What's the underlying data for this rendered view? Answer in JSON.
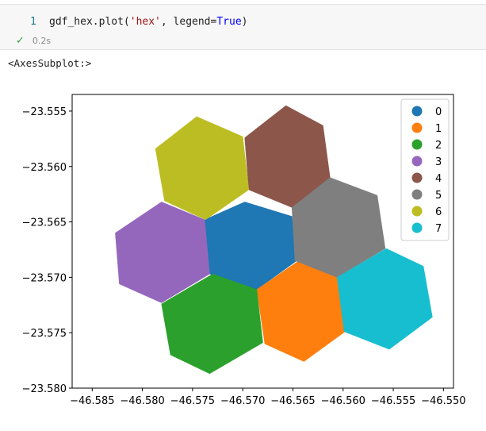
{
  "cell": {
    "line_number": "1",
    "code": {
      "prefix": "gdf_hex.plot(",
      "string_arg": "'hex'",
      "separator": ", legend=",
      "keyword_value": "True",
      "suffix": ")"
    },
    "exec_time": "0.2s"
  },
  "output_text": "<AxesSubplot:>",
  "chart_data": {
    "type": "map",
    "xlim": [
      -46.587,
      -46.549
    ],
    "ylim": [
      -23.58,
      -23.5535
    ],
    "x_ticks": [
      -46.585,
      -46.58,
      -46.575,
      -46.57,
      -46.565,
      -46.56,
      -46.555,
      -46.55
    ],
    "x_tick_labels": [
      "−46.585",
      "−46.580",
      "−46.575",
      "−46.570",
      "−46.565",
      "−46.560",
      "−46.555",
      "−46.550"
    ],
    "y_ticks": [
      -23.555,
      -23.56,
      -23.565,
      -23.57,
      -23.575,
      -23.58
    ],
    "y_tick_labels": [
      "−23.555",
      "−23.560",
      "−23.565",
      "−23.570",
      "−23.575",
      "−23.580"
    ],
    "legend_position": "top-right",
    "series": [
      {
        "name": "0",
        "color": "#1f77b4",
        "polygon": [
          [
            -46.5738,
            -23.5648
          ],
          [
            -46.5738,
            -23.5648
          ],
          [
            -46.5698,
            -23.5632
          ],
          [
            -46.5651,
            -23.5645
          ],
          [
            -46.5646,
            -23.5685
          ],
          [
            -46.5686,
            -23.5711
          ],
          [
            -46.5733,
            -23.5697
          ]
        ]
      },
      {
        "name": "1",
        "color": "#ff7f0e",
        "polygon": [
          [
            -46.5686,
            -23.5711
          ],
          [
            -46.5644,
            -23.5685
          ],
          [
            -46.5606,
            -23.57
          ],
          [
            -46.5598,
            -23.5749
          ],
          [
            -46.5639,
            -23.5776
          ],
          [
            -46.5678,
            -23.576
          ]
        ]
      },
      {
        "name": "2",
        "color": "#2ca02c",
        "polygon": [
          [
            -46.5781,
            -23.5724
          ],
          [
            -46.573,
            -23.5697
          ],
          [
            -46.5686,
            -23.5711
          ],
          [
            -46.568,
            -23.5759
          ],
          [
            -46.5733,
            -23.5787
          ],
          [
            -46.5772,
            -23.577
          ]
        ]
      },
      {
        "name": "3",
        "color": "#9467bd",
        "polygon": [
          [
            -46.5827,
            -23.566
          ],
          [
            -46.5781,
            -23.5632
          ],
          [
            -46.5738,
            -23.5648
          ],
          [
            -46.5733,
            -23.5697
          ],
          [
            -46.5781,
            -23.5723
          ],
          [
            -46.5823,
            -23.5706
          ]
        ]
      },
      {
        "name": "4",
        "color": "#8c564b",
        "polygon": [
          [
            -46.5698,
            -23.5574
          ],
          [
            -46.5657,
            -23.5545
          ],
          [
            -46.562,
            -23.5563
          ],
          [
            -46.5613,
            -23.561
          ],
          [
            -46.5651,
            -23.5637
          ],
          [
            -46.5694,
            -23.5621
          ]
        ]
      },
      {
        "name": "5",
        "color": "#7f7f7f",
        "polygon": [
          [
            -46.5651,
            -23.5637
          ],
          [
            -46.5613,
            -23.561
          ],
          [
            -46.5566,
            -23.5626
          ],
          [
            -46.5558,
            -23.5674
          ],
          [
            -46.5606,
            -23.57
          ],
          [
            -46.5648,
            -23.5685
          ]
        ]
      },
      {
        "name": "6",
        "color": "#bcbd22",
        "polygon": [
          [
            -46.5787,
            -23.5584
          ],
          [
            -46.5746,
            -23.5555
          ],
          [
            -46.57,
            -23.5573
          ],
          [
            -46.5694,
            -23.5621
          ],
          [
            -46.5737,
            -23.5648
          ],
          [
            -46.5778,
            -23.5631
          ]
        ]
      },
      {
        "name": "7",
        "color": "#17becf",
        "polygon": [
          [
            -46.5606,
            -23.57
          ],
          [
            -46.5557,
            -23.5674
          ],
          [
            -46.552,
            -23.569
          ],
          [
            -46.5511,
            -23.5736
          ],
          [
            -46.5554,
            -23.5765
          ],
          [
            -46.5599,
            -23.5749
          ]
        ]
      }
    ]
  }
}
